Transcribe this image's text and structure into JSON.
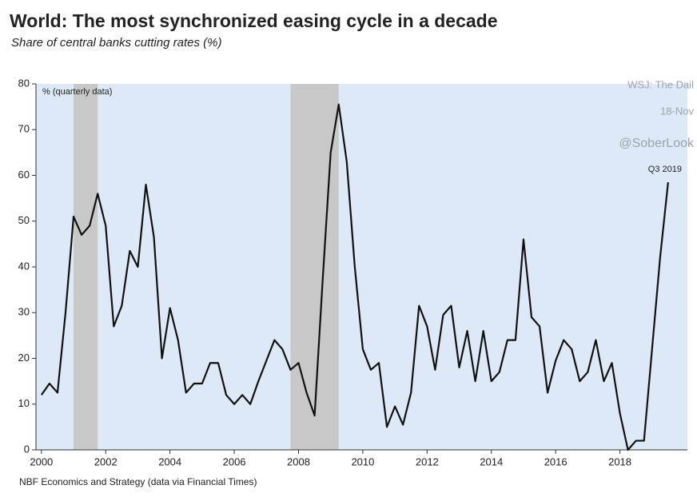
{
  "chart_data": {
    "type": "line",
    "title": "World: The most synchronized easing cycle in a decade",
    "subtitle": "Share of central banks cutting rates (%)",
    "y_note": "% (quarterly data)",
    "point_label": "Q3 2019",
    "watermarks": [
      "WSJ: The Dail",
      "18-Nov",
      "@SoberLook"
    ],
    "source": "NBF Economics and Strategy (data via Financial Times)",
    "x": [
      2000,
      2000.25,
      2000.5,
      2000.75,
      2001,
      2001.25,
      2001.5,
      2001.75,
      2002,
      2002.25,
      2002.5,
      2002.75,
      2003,
      2003.25,
      2003.5,
      2003.75,
      2004,
      2004.25,
      2004.5,
      2004.75,
      2005,
      2005.25,
      2005.5,
      2005.75,
      2006,
      2006.25,
      2006.5,
      2006.75,
      2007,
      2007.25,
      2007.5,
      2007.75,
      2008,
      2008.25,
      2008.5,
      2008.75,
      2009,
      2009.25,
      2009.5,
      2009.75,
      2010,
      2010.25,
      2010.5,
      2010.75,
      2011,
      2011.25,
      2011.5,
      2011.75,
      2012,
      2012.25,
      2012.5,
      2012.75,
      2013,
      2013.25,
      2013.5,
      2013.75,
      2014,
      2014.25,
      2014.5,
      2014.75,
      2015,
      2015.25,
      2015.5,
      2015.75,
      2016,
      2016.25,
      2016.5,
      2016.75,
      2017,
      2017.25,
      2017.5,
      2017.75,
      2018,
      2018.25,
      2018.5,
      2018.75,
      2019,
      2019.25,
      2019.5
    ],
    "series": [
      {
        "name": "Share of central banks cutting rates",
        "color": "#111111",
        "values": [
          12,
          14.5,
          12.5,
          30,
          51,
          47,
          49,
          56,
          49,
          27,
          31.5,
          43.5,
          40,
          58,
          46.5,
          20,
          31,
          24,
          12.5,
          14.5,
          14.5,
          19,
          19,
          12,
          10,
          12,
          10,
          15,
          19.5,
          24,
          22,
          17.5,
          19,
          12.5,
          7.5,
          37,
          65,
          75.5,
          63,
          40,
          22,
          17.5,
          19,
          5,
          9.5,
          5.5,
          12.5,
          31.5,
          27,
          17.5,
          29.5,
          31.5,
          18,
          26,
          15,
          26,
          15,
          17,
          24,
          24,
          46,
          29,
          27,
          12.5,
          19.5,
          24,
          22,
          15,
          17,
          24,
          15,
          19,
          8,
          0,
          2,
          2,
          22,
          42,
          58.5
        ]
      }
    ],
    "shaded": [
      [
        2001,
        2001.75
      ],
      [
        2007.75,
        2009.25
      ]
    ],
    "shade_color": "#c8c8c8",
    "background": "#dde9f7",
    "xlim": [
      1999.83,
      2020.1
    ],
    "xticks": [
      2000,
      2002,
      2004,
      2006,
      2008,
      2010,
      2012,
      2014,
      2016,
      2018
    ],
    "ylim": [
      0,
      80
    ],
    "yticks": [
      0,
      10,
      20,
      30,
      40,
      50,
      60,
      70,
      80
    ]
  }
}
